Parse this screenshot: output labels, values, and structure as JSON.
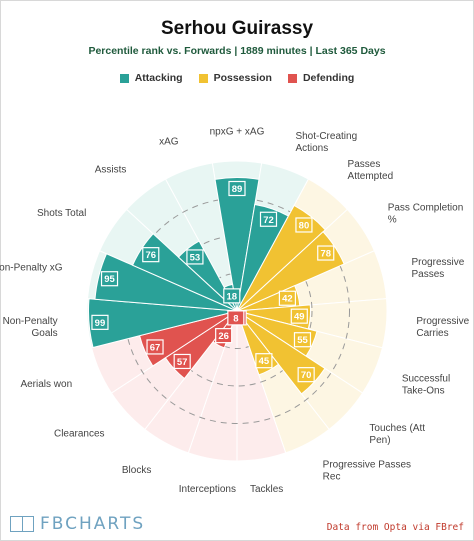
{
  "chart_data": {
    "type": "radial-bar",
    "title": "Serhou Guirassy",
    "subtitle": "Percentile rank vs. Forwards | 1889 minutes | Last 365 Days",
    "rlim": [
      0,
      100
    ],
    "legend": [
      {
        "name": "Attacking",
        "color": "#2aa198"
      },
      {
        "name": "Possession",
        "color": "#f1c232"
      },
      {
        "name": "Defending",
        "color": "#e0534f"
      }
    ],
    "categories": [
      {
        "label": "npxG + xAG",
        "value": 89,
        "group": "Attacking"
      },
      {
        "label": "Shot-Creating Actions",
        "value": 72,
        "group": "Attacking"
      },
      {
        "label": "Passes Attempted",
        "value": 80,
        "group": "Possession"
      },
      {
        "label": "Pass Completion %",
        "value": 78,
        "group": "Possession"
      },
      {
        "label": "Progressive Passes",
        "value": 42,
        "group": "Possession"
      },
      {
        "label": "Progressive Carries",
        "value": 49,
        "group": "Possession"
      },
      {
        "label": "Successful Take-Ons",
        "value": 55,
        "group": "Possession"
      },
      {
        "label": "Touches (Att Pen)",
        "value": 70,
        "group": "Possession"
      },
      {
        "label": "Progressive Passes Rec",
        "value": 45,
        "group": "Possession"
      },
      {
        "label": "Tackles",
        "value": 4,
        "group": "Defending"
      },
      {
        "label": "Interceptions",
        "value": 8,
        "group": "Defending"
      },
      {
        "label": "Blocks",
        "value": 26,
        "group": "Defending"
      },
      {
        "label": "Clearances",
        "value": 57,
        "group": "Defending"
      },
      {
        "label": "Aerials won",
        "value": 67,
        "group": "Defending"
      },
      {
        "label": "Non-Penalty Goals",
        "value": 99,
        "group": "Attacking"
      },
      {
        "label": "Non-Penalty xG",
        "value": 95,
        "group": "Attacking"
      },
      {
        "label": "Shots Total",
        "value": 76,
        "group": "Attacking"
      },
      {
        "label": "Assists",
        "value": 53,
        "group": "Attacking"
      },
      {
        "label": "xAG",
        "value": 18,
        "group": "Attacking"
      }
    ]
  },
  "footer": {
    "logo_text": "FBCHARTS",
    "source": "Data from Opta via FBref"
  }
}
